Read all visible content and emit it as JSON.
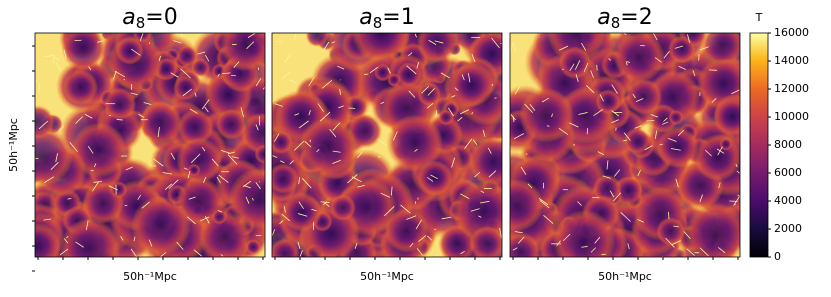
{
  "chart_data": {
    "type": "heatmap",
    "panels": [
      {
        "symbol": "a",
        "subscript": "8",
        "value": "=0"
      },
      {
        "symbol": "a",
        "subscript": "8",
        "value": "=1"
      },
      {
        "symbol": "a",
        "subscript": "8",
        "value": "=2"
      }
    ],
    "xlabel": "50h⁻¹Mpc",
    "ylabel": "50h⁻¹Mpc",
    "colorbar": {
      "label": "T",
      "lim": [
        0,
        16000
      ],
      "ticks": [
        0,
        2000,
        4000,
        6000,
        8000,
        10000,
        12000,
        14000,
        16000
      ],
      "colormap": "inferno"
    }
  }
}
